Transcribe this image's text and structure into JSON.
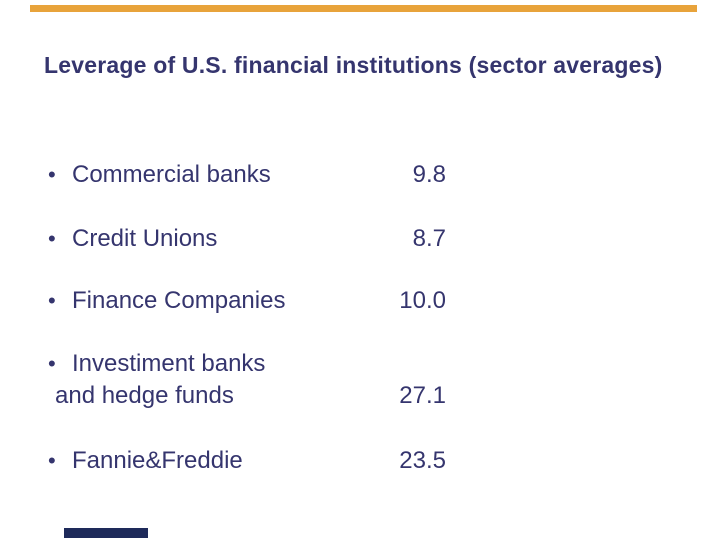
{
  "slide": {
    "title": "Leverage of U.S. financial institutions (sector averages)",
    "bullet_char": "•",
    "items": [
      {
        "label": "Commercial banks",
        "value": "9.8"
      },
      {
        "label": "Credit Unions",
        "value": "8.7"
      },
      {
        "label": "Finance Companies",
        "value": "10.0"
      },
      {
        "label": "Investiment banks",
        "label_line2": "and hedge funds",
        "value": "27.1"
      },
      {
        "label": "Fannie&Freddie",
        "value": "23.5"
      }
    ],
    "colors": {
      "text": "#35356E",
      "top_bar": "#E8A33B",
      "footer_bar": "#1E2A5A",
      "background": "#FFFFFF"
    }
  }
}
